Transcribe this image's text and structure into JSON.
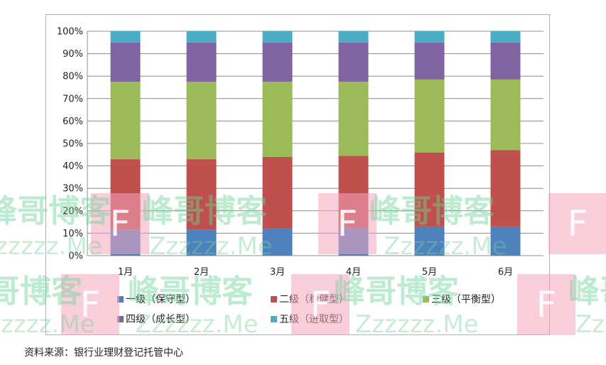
{
  "chart_data": {
    "type": "bar",
    "stacked": true,
    "categories": [
      "1月",
      "2月",
      "3月",
      "4月",
      "5月",
      "6月"
    ],
    "yticks": [
      "0%",
      "10%",
      "20%",
      "30%",
      "40%",
      "50%",
      "60%",
      "70%",
      "80%",
      "90%",
      "100%"
    ],
    "ylim": [
      0,
      100
    ],
    "grid": true,
    "legend_position": "bottom",
    "series": [
      {
        "name": "一级（保守型）",
        "color": "#4f81bd",
        "values": [
          11.5,
          11.5,
          12.0,
          12.5,
          13.0,
          13.0
        ]
      },
      {
        "name": "二级（稳健型）",
        "color": "#c0504d",
        "values": [
          31.5,
          31.5,
          32.0,
          32.0,
          33.0,
          34.0
        ]
      },
      {
        "name": "三级（平衡型）",
        "color": "#9bbb59",
        "values": [
          34.5,
          34.5,
          33.5,
          33.0,
          32.5,
          31.5
        ]
      },
      {
        "name": "四级（成长型）",
        "color": "#8064a2",
        "values": [
          17.5,
          17.5,
          17.5,
          17.5,
          16.5,
          16.5
        ]
      },
      {
        "name": "五级（进取型）",
        "color": "#4bacc6",
        "values": [
          5.0,
          5.0,
          5.0,
          5.0,
          5.0,
          5.0
        ]
      }
    ]
  },
  "source_note": "资料来源：银行业理财登记托管中心",
  "watermark": {
    "text_cn": "峰哥博客",
    "text_en": "Zzzzzz.Me",
    "logo_letter": "F"
  }
}
